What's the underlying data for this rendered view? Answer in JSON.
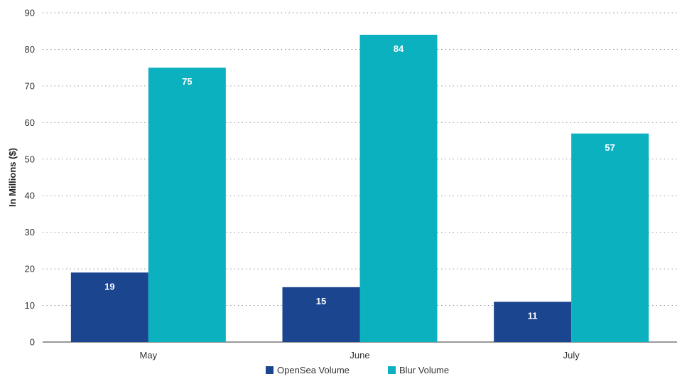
{
  "chart_data": {
    "type": "bar",
    "title": "",
    "xlabel": "",
    "ylabel": "In Millions ($)",
    "categories": [
      "May",
      "June",
      "July"
    ],
    "series": [
      {
        "name": "OpenSea Volume",
        "values": [
          19,
          15,
          11
        ],
        "color": "#1b458f"
      },
      {
        "name": "Blur Volume",
        "values": [
          75,
          84,
          57
        ],
        "color": "#0bb1bf"
      }
    ],
    "ylim": [
      0,
      90
    ],
    "yticks": [
      0,
      10,
      20,
      30,
      40,
      50,
      60,
      70,
      80,
      90
    ],
    "grid": true,
    "legend_position": "bottom-center",
    "data_labels": true
  }
}
